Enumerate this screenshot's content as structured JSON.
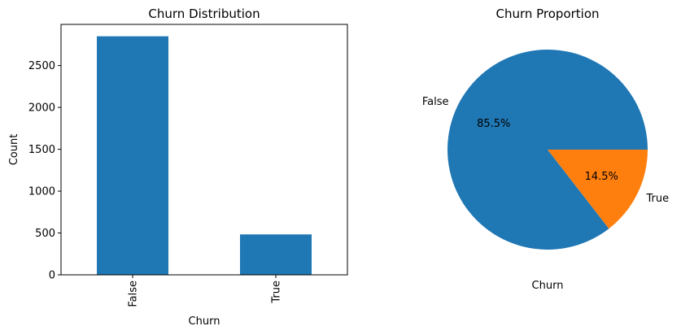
{
  "chart_data": [
    {
      "type": "bar",
      "title": "Churn Distribution",
      "xlabel": "Churn",
      "ylabel": "Count",
      "categories": [
        "False",
        "True"
      ],
      "values": [
        2850,
        483
      ],
      "ylim": [
        0,
        2992
      ],
      "yticks": [
        0,
        500,
        1000,
        1500,
        2000,
        2500
      ],
      "ytick_labels": [
        "0",
        "500",
        "1000",
        "1500",
        "2000",
        "2500"
      ],
      "bar_color": "#1f77b4",
      "grid": false
    },
    {
      "type": "pie",
      "title": "Churn Proportion",
      "ylabel": "Churn",
      "labels": [
        "False",
        "True"
      ],
      "values": [
        85.5,
        14.5
      ],
      "pct_labels": [
        "85.5%",
        "14.5%"
      ],
      "colors": [
        "#1f77b4",
        "#ff7f0e"
      ]
    }
  ]
}
